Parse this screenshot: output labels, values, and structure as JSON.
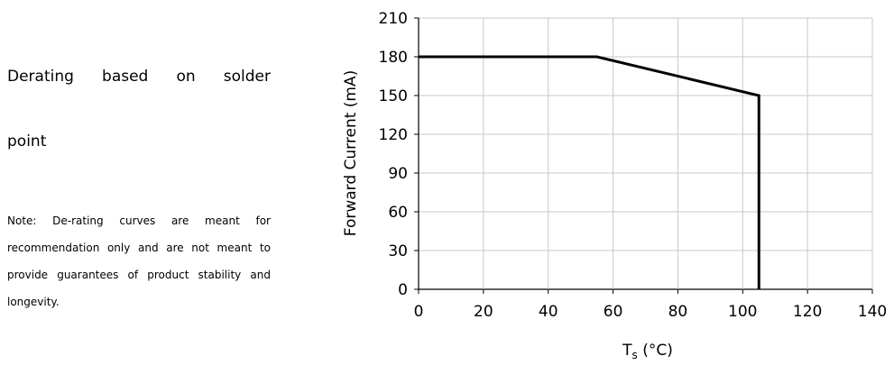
{
  "text": {
    "heading_line1": "Derating based on solder",
    "heading_line2": "point",
    "note": "Note: De-rating curves are meant for recommendation only and are not meant to provide guarantees of product stability and longevity."
  },
  "chart_data": {
    "type": "line",
    "title": "",
    "xlabel": "Ts (°C)",
    "xlabel_main": "T",
    "xlabel_sub": "s",
    "xlabel_unit": " (°C)",
    "ylabel": "Forward Current (mA)",
    "xlim": [
      0,
      140
    ],
    "ylim": [
      0,
      210
    ],
    "xticks": [
      0,
      20,
      40,
      60,
      80,
      100,
      120,
      140
    ],
    "yticks": [
      0,
      30,
      60,
      90,
      120,
      150,
      180,
      210
    ],
    "grid": true,
    "series": [
      {
        "x": [
          0,
          55,
          105,
          105
        ],
        "y": [
          180,
          180,
          150,
          0
        ],
        "color": "#000000"
      }
    ]
  }
}
